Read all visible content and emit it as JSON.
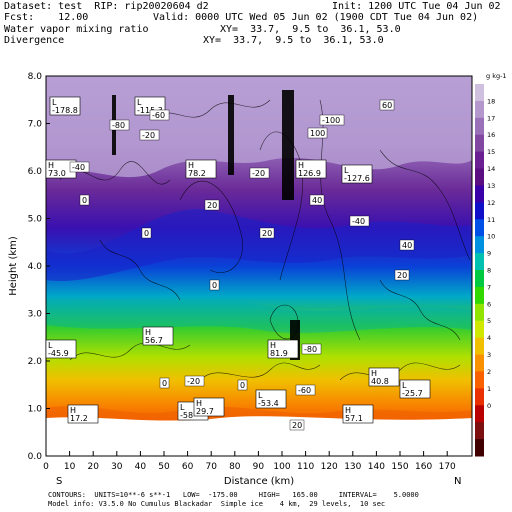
{
  "header": {
    "line1_left": "Dataset: test  RIP: rip20020604 d2",
    "line1_right": "Init: 1200 UTC Tue 04 Jun 02",
    "line2_left": "Fcst:    12.00",
    "line2_right": "Valid: 0000 UTC Wed 05 Jun 02 (1900 CDT Tue 04 Jun 02)",
    "line3_left": "Water vapor mixing ratio",
    "line3_right": "XY=  33.7,  9.5 to  36.1, 53.0",
    "line4_left": "Divergence",
    "line4_right": "XY=  33.7,  9.5 to  36.1, 53.0"
  },
  "axes": {
    "ylabel": "Height (km)",
    "xlabel": "Distance (km)",
    "left_end": "S",
    "right_end": "N",
    "yticks": [
      "8.0",
      "7.0",
      "6.0",
      "5.0",
      "4.0",
      "3.0",
      "2.0",
      "1.0",
      "0.0"
    ],
    "xticks": [
      "0",
      "10",
      "20",
      "30",
      "40",
      "50",
      "60",
      "70",
      "80",
      "90",
      "100",
      "110",
      "120",
      "130",
      "140",
      "150",
      "160",
      "170"
    ]
  },
  "colorbar": {
    "unit_label": "g kg-1",
    "labels": [
      "18",
      "17",
      "16",
      "15",
      "14",
      "13",
      "12",
      "11",
      "10",
      "9",
      "8",
      "7",
      "6",
      "5",
      "4",
      "3",
      "2",
      "1",
      "0"
    ],
    "colors": [
      "#cfc0e0",
      "#b498cc",
      "#9a70b8",
      "#8048a0",
      "#6a2090",
      "#5a0e80",
      "#3a00a8",
      "#1010c8",
      "#0050e8",
      "#0090e0",
      "#00c0b0",
      "#00c840",
      "#30d800",
      "#90e400",
      "#d0e800",
      "#f0c000",
      "#f89000",
      "#f86000",
      "#e83000",
      "#b80000",
      "#7c1010",
      "#400000"
    ]
  },
  "footer": {
    "line1": "CONTOURS:  UNITS=10**-6 s**-1   LOW=  -175.00     HIGH=   165.00     INTERVAL=    5.0000",
    "line2": "Model info: V3.5.0 No Cumulus Blackadar  Simple ice    4 km,  29 levels,  10 sec"
  },
  "annotations": [
    {
      "label": "L",
      "value": "-178.8"
    },
    {
      "label": "L",
      "value": "-115.3"
    },
    {
      "label": "H",
      "value": "73.0"
    },
    {
      "label": "H",
      "value": "78.2"
    },
    {
      "label": "H",
      "value": "126.9"
    },
    {
      "label": "L",
      "value": "-127.6"
    },
    {
      "label": "L",
      "value": "-45.9"
    },
    {
      "label": "H",
      "value": "56.7"
    },
    {
      "label": "H",
      "value": "81.9"
    },
    {
      "label": "H",
      "value": "40.8"
    },
    {
      "label": "L",
      "value": "-25.7"
    },
    {
      "label": "H",
      "value": "17.2"
    },
    {
      "label": "L",
      "value": "-58"
    },
    {
      "label": "H",
      "value": "29.7"
    },
    {
      "label": "L",
      "value": "-53.4"
    },
    {
      "label": "H",
      "value": "57.1"
    }
  ],
  "contour_labels": [
    "-40",
    "-20",
    "0",
    "20",
    "40",
    "-60",
    "60",
    "-80",
    "100",
    "-100",
    "-20",
    "0",
    "20",
    "-40",
    "40",
    "0",
    "-20",
    "20",
    "0",
    "-60",
    "-80",
    "0",
    "20"
  ]
}
